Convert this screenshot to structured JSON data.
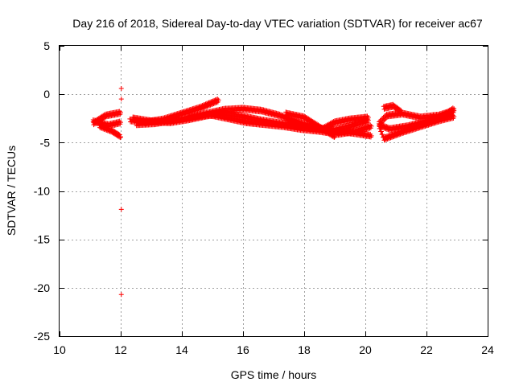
{
  "chart_data": {
    "type": "scatter",
    "title": "Day 216 of 2018, Sidereal Day-to-day VTEC variation (SDTVAR) for receiver ac67",
    "xlabel": "GPS time / hours",
    "ylabel": "SDTVAR / TECUs",
    "xlim": [
      10,
      24
    ],
    "ylim": [
      -25,
      5
    ],
    "xticks": [
      10,
      12,
      14,
      16,
      18,
      20,
      22,
      24
    ],
    "yticks": [
      5,
      0,
      -5,
      -10,
      -15,
      -20,
      -25
    ],
    "grid": true,
    "marker": "+",
    "color": "#ff0000",
    "outliers": [
      {
        "x": 12.02,
        "y": 0.6
      },
      {
        "x": 12.02,
        "y": -0.5
      },
      {
        "x": 12.02,
        "y": -11.9
      },
      {
        "x": 12.02,
        "y": -20.7
      }
    ],
    "bands": [
      {
        "x": [
          11.1,
          11.5,
          12.0
        ],
        "y": [
          -3.0,
          -2.2,
          -1.9
        ]
      },
      {
        "x": [
          11.1,
          11.6,
          12.0
        ],
        "y": [
          -2.8,
          -3.2,
          -2.9
        ]
      },
      {
        "x": [
          11.3,
          11.7,
          12.0
        ],
        "y": [
          -3.3,
          -3.8,
          -4.4
        ]
      },
      {
        "x": [
          12.3,
          12.8,
          13.4,
          14.0,
          14.6,
          15.2
        ],
        "y": [
          -2.7,
          -2.9,
          -2.6,
          -2.0,
          -1.4,
          -0.6
        ]
      },
      {
        "x": [
          12.4,
          13.0,
          13.6,
          14.2,
          14.8,
          15.4,
          16.0,
          16.6,
          17.2,
          17.8,
          18.4,
          19.0,
          19.6,
          20.1
        ],
        "y": [
          -2.5,
          -2.8,
          -2.9,
          -2.6,
          -2.2,
          -2.0,
          -2.3,
          -2.7,
          -3.0,
          -3.2,
          -3.5,
          -3.7,
          -3.2,
          -2.7
        ]
      },
      {
        "x": [
          12.5,
          13.1,
          13.7,
          14.3,
          14.9,
          15.5,
          16.1,
          16.7,
          17.3,
          17.9,
          18.5,
          19.1,
          19.7,
          20.2
        ],
        "y": [
          -3.1,
          -3.0,
          -2.7,
          -2.4,
          -2.1,
          -2.5,
          -2.9,
          -3.1,
          -3.3,
          -3.6,
          -3.8,
          -4.1,
          -3.8,
          -3.3
        ]
      },
      {
        "x": [
          14.2,
          14.8,
          15.4,
          16.0,
          16.6,
          17.2,
          17.8,
          18.4,
          19.0,
          19.6,
          20.2
        ],
        "y": [
          -2.4,
          -2.0,
          -1.6,
          -1.5,
          -1.7,
          -2.2,
          -2.9,
          -3.5,
          -3.8,
          -4.0,
          -4.3
        ]
      },
      {
        "x": [
          17.4,
          18.0,
          18.6,
          19.0
        ],
        "y": [
          -2.0,
          -2.4,
          -3.6,
          -4.4
        ]
      },
      {
        "x": [
          18.6,
          19.0,
          19.5,
          20.1
        ],
        "y": [
          -3.6,
          -2.9,
          -2.6,
          -2.4
        ]
      },
      {
        "x": [
          20.45,
          20.7,
          21.2,
          21.8,
          22.4,
          22.9
        ],
        "y": [
          -3.0,
          -2.2,
          -2.0,
          -2.4,
          -2.2,
          -1.7
        ]
      },
      {
        "x": [
          20.45,
          20.8,
          21.4,
          22.0,
          22.5,
          22.9
        ],
        "y": [
          -3.2,
          -3.6,
          -3.3,
          -2.8,
          -2.3,
          -1.5
        ]
      },
      {
        "x": [
          20.45,
          20.6,
          21.2,
          21.8,
          22.4,
          22.9
        ],
        "y": [
          -3.4,
          -4.6,
          -3.9,
          -3.3,
          -2.7,
          -2.3
        ]
      },
      {
        "x": [
          20.6,
          20.9,
          21.2
        ],
        "y": [
          -1.4,
          -1.2,
          -1.9
        ]
      }
    ]
  }
}
